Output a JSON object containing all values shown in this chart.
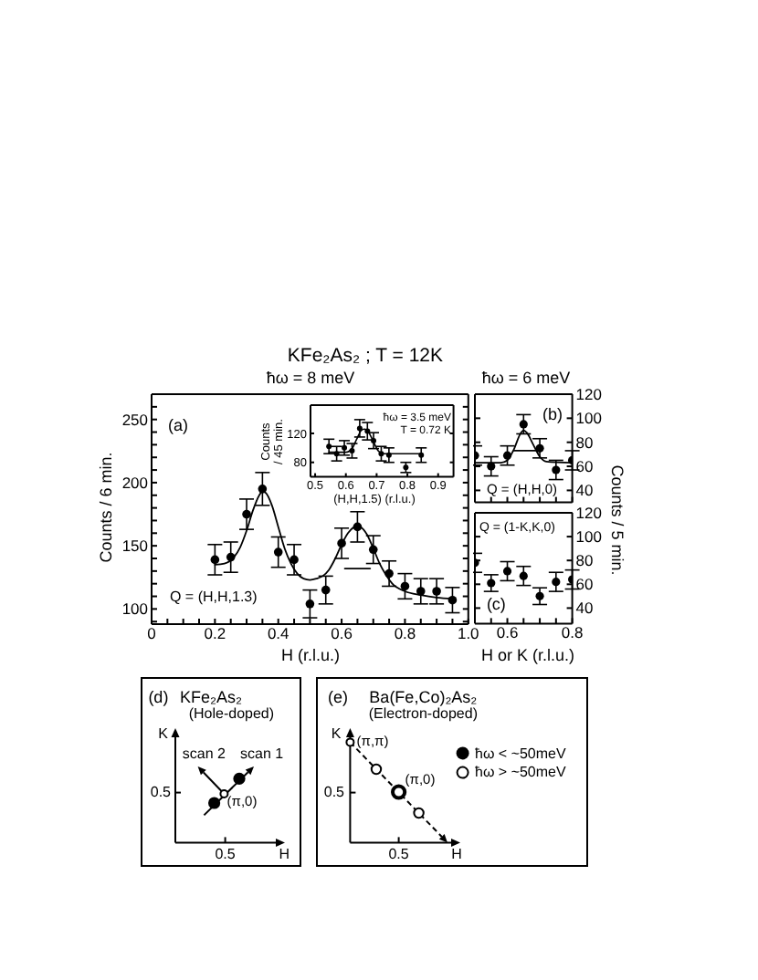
{
  "chart_data": [
    {
      "type": "scatter",
      "title": "KFe₂As₂ ; T = 12K",
      "subtitle": "ħω = 8 meV",
      "xlabel": "H (r.l.u.)",
      "ylabel": "Counts / 6 min.",
      "annotations": [
        "(a)",
        "Q = (H,H,1.3)"
      ],
      "xlim": [
        0,
        1
      ],
      "xticks": [
        0,
        {
          "value": 0.05,
          "label": null
        },
        {
          "value": 0.1,
          "label": null
        },
        {
          "value": 0.15,
          "label": null
        },
        0.2,
        {
          "value": 0.25,
          "label": null
        },
        {
          "value": 0.3,
          "label": null
        },
        {
          "value": 0.35,
          "label": null
        },
        0.4,
        {
          "value": 0.45,
          "label": null
        },
        {
          "value": 0.5,
          "label": null
        },
        {
          "value": 0.55,
          "label": null
        },
        0.6,
        {
          "value": 0.65,
          "label": null
        },
        {
          "value": 0.7,
          "label": null
        },
        {
          "value": 0.75,
          "label": null
        },
        0.8,
        {
          "value": 0.85,
          "label": null
        },
        {
          "value": 0.9,
          "label": null
        },
        {
          "value": 0.95,
          "label": null
        },
        {
          "value": 1,
          "label": "1.0"
        }
      ],
      "ylim": [
        88,
        270
      ],
      "yticks": [
        {
          "value": 90,
          "label": null
        },
        100,
        {
          "value": 110,
          "label": null
        },
        {
          "value": 120,
          "label": null
        },
        {
          "value": 130,
          "label": null
        },
        {
          "value": 140,
          "label": null
        },
        150,
        {
          "value": 160,
          "label": null
        },
        {
          "value": 170,
          "label": null
        },
        {
          "value": 180,
          "label": null
        },
        {
          "value": 190,
          "label": null
        },
        200,
        {
          "value": 210,
          "label": null
        },
        {
          "value": 220,
          "label": null
        },
        {
          "value": 230,
          "label": null
        },
        {
          "value": 240,
          "label": null
        },
        250,
        {
          "value": 260,
          "label": null
        }
      ],
      "marker": "circle",
      "series": [
        {
          "type": "scatter",
          "color": "#000000",
          "x": [
            0.2,
            0.25,
            0.3,
            0.35,
            0.4,
            0.45,
            0.5,
            0.55,
            0.6,
            0.65,
            0.7,
            0.75,
            0.8,
            0.85,
            0.9,
            0.95
          ],
          "values": [
            139,
            141,
            175,
            195,
            145,
            139,
            104,
            115,
            152,
            165,
            147,
            128,
            118,
            114,
            114,
            107
          ],
          "errors": [
            12,
            12,
            12,
            13,
            12,
            12,
            11,
            11,
            12,
            12,
            11,
            10,
            10,
            10,
            10,
            10
          ]
        },
        {
          "type": "line",
          "color": "#000000",
          "marker": "none",
          "x": [
            0.2,
            0.23,
            0.26,
            0.28,
            0.3,
            0.32,
            0.34,
            0.35,
            0.36,
            0.38,
            0.4,
            0.42,
            0.44,
            0.46,
            0.48,
            0.5,
            0.52,
            0.54,
            0.56,
            0.58,
            0.6,
            0.62,
            0.64,
            0.65,
            0.66,
            0.68,
            0.7,
            0.72,
            0.74,
            0.76,
            0.8,
            0.85,
            0.9,
            0.95
          ],
          "values": [
            135,
            136,
            141,
            149,
            162,
            178,
            190,
            193,
            192,
            182,
            165,
            148,
            136,
            128,
            124,
            123,
            124,
            126,
            131,
            140,
            151,
            160,
            165,
            166,
            165,
            159,
            148,
            136,
            127,
            120,
            114,
            111,
            109,
            108
          ]
        },
        {
          "type": "line",
          "color": "#000000",
          "marker": "none",
          "x": [
            0.61,
            0.69
          ],
          "values": [
            132,
            132
          ]
        }
      ]
    },
    {
      "type": "scatter",
      "xlabel": "(H,H,1.5) (r.l.u.)",
      "ylabel": "Counts / 45 min.",
      "annotations": [
        "ħω = 3.5 meV",
        "T = 0.72 K"
      ],
      "xlim": [
        0.485,
        0.95
      ],
      "xticks": [
        0.5,
        0.6,
        0.7,
        0.8,
        0.9
      ],
      "ylim": [
        60,
        159
      ],
      "yticks": [
        80,
        120
      ],
      "marker": "circle",
      "series": [
        {
          "type": "scatter",
          "color": "#000000",
          "x": [
            0.545,
            0.57,
            0.595,
            0.62,
            0.645,
            0.67,
            0.69,
            0.715,
            0.74,
            0.795,
            0.845
          ],
          "values": [
            102,
            92,
            100,
            96,
            127,
            123,
            110,
            92,
            90,
            73,
            90
          ],
          "errors": [
            10,
            10,
            10,
            10,
            12,
            12,
            11,
            10,
            10,
            7,
            10
          ]
        },
        {
          "type": "line",
          "color": "#000000",
          "marker": "none",
          "x": [
            0.545,
            0.6,
            0.62,
            0.635,
            0.65,
            0.66,
            0.675,
            0.69,
            0.705,
            0.72,
            0.845
          ],
          "values": [
            94,
            94,
            99,
            112,
            124,
            126,
            121,
            108,
            96,
            92,
            92
          ]
        }
      ]
    },
    {
      "type": "scatter",
      "title": "ħω = 6 meV",
      "ylabel": "Counts / 5 min.",
      "annotations": [
        "(b)",
        "Q = (H,H,0)"
      ],
      "xlim": [
        0.5,
        0.8
      ],
      "xticks": [
        {
          "value": 0.55,
          "label": null
        },
        0.6,
        {
          "value": 0.65,
          "label": null
        },
        {
          "value": 0.7,
          "label": null
        },
        {
          "value": 0.75,
          "label": null
        },
        0.8
      ],
      "ylim": [
        30,
        120
      ],
      "yticks": [
        40,
        60,
        80,
        100,
        120
      ],
      "tick_labels": "y",
      "marker": "circle",
      "series": [
        {
          "type": "scatter",
          "color": "#000000",
          "x": [
            0.5,
            0.55,
            0.6,
            0.65,
            0.7,
            0.75,
            0.8
          ],
          "values": [
            69,
            60,
            69,
            95,
            75,
            57,
            65
          ],
          "errors": [
            8,
            8,
            8,
            8,
            8,
            8,
            8
          ]
        },
        {
          "type": "line",
          "color": "#000000",
          "marker": "none",
          "x": [
            0.5,
            0.58,
            0.6,
            0.62,
            0.64,
            0.65,
            0.66,
            0.68,
            0.7,
            0.72,
            0.8
          ],
          "values": [
            63,
            63,
            65,
            74,
            87,
            90,
            88,
            78,
            68,
            64,
            63
          ]
        },
        {
          "type": "line",
          "color": "#000000",
          "marker": "none",
          "x": [
            0.62,
            0.69
          ],
          "values": [
            73,
            73
          ]
        }
      ]
    },
    {
      "type": "scatter",
      "xlabel": "H or K (r.l.u.)",
      "annotations": [
        "Q = (1-K,K,0)",
        "(c)"
      ],
      "xlim": [
        0.5,
        0.8
      ],
      "xticks": [
        {
          "value": 0.55,
          "label": null
        },
        0.6,
        {
          "value": 0.65,
          "label": null
        },
        {
          "value": 0.7,
          "label": null
        },
        {
          "value": 0.75,
          "label": null
        },
        0.8
      ],
      "ylim": [
        27,
        120
      ],
      "yticks": [
        40,
        60,
        80,
        100,
        120
      ],
      "marker": "circle",
      "series": [
        {
          "type": "scatter",
          "color": "#000000",
          "x": [
            0.5,
            0.55,
            0.6,
            0.65,
            0.7,
            0.75,
            0.8
          ],
          "values": [
            78,
            61,
            71,
            67,
            50,
            62,
            64
          ],
          "errors": [
            8,
            7,
            8,
            8,
            7,
            8,
            8
          ]
        }
      ]
    },
    {
      "type": "other",
      "title": "KFe₂As₂",
      "subtitle": "(Hole-doped)",
      "xlabel": "H",
      "ylabel": "K",
      "annotations": [
        "(d)",
        "0.5",
        "0.5",
        "scan 1",
        "scan 2",
        "(π,0)"
      ]
    },
    {
      "type": "other",
      "title": "Ba(Fe,Co)₂As₂",
      "subtitle": "(Electron-doped)",
      "xlabel": "H",
      "ylabel": "K",
      "annotations": [
        "(e)",
        "0.5",
        "0.5",
        "(π,π)",
        "(π,0)",
        "ħω < ~50meV",
        "ħω > ~50meV"
      ]
    }
  ]
}
